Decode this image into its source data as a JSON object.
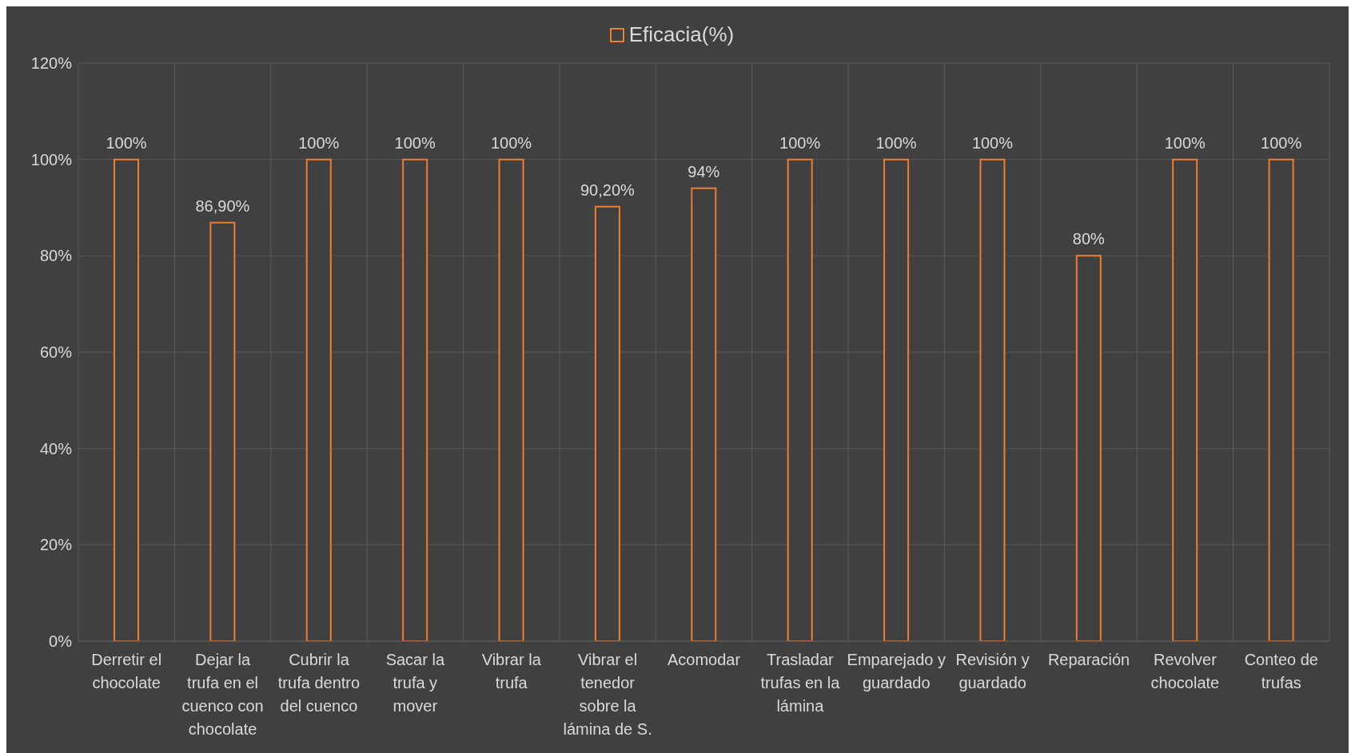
{
  "chart_data": {
    "type": "bar",
    "categories": [
      "Derretir el chocolate",
      "Dejar la trufa en el cuenco con chocolate",
      "Cubrir la trufa dentro del cuenco",
      "Sacar la trufa y mover",
      "Vibrar la trufa",
      "Vibrar el tenedor sobre la lámina de S.",
      "Acomodar",
      "Trasladar trufas en la lámina",
      "Emparejado y guardado",
      "Revisión y guardado",
      "Reparación",
      "Revolver chocolate",
      "Conteo de trufas"
    ],
    "series": [
      {
        "name": "Eficacia(%)",
        "color": "#ed7d31",
        "values": [
          100,
          86.9,
          100,
          100,
          100,
          90.2,
          94,
          100,
          100,
          100,
          80,
          100,
          100
        ],
        "value_labels": [
          "100%",
          "86,90%",
          "100%",
          "100%",
          "100%",
          "90,20%",
          "94%",
          "100%",
          "100%",
          "100%",
          "80%",
          "100%",
          "100%"
        ]
      }
    ],
    "ylim": [
      0,
      120
    ],
    "yticks": [
      {
        "value": 0,
        "label": "0%"
      },
      {
        "value": 20,
        "label": "20%"
      },
      {
        "value": 40,
        "label": "40%"
      },
      {
        "value": 60,
        "label": "60%"
      },
      {
        "value": 80,
        "label": "80%"
      },
      {
        "value": 100,
        "label": "100%"
      },
      {
        "value": 120,
        "label": "120%"
      }
    ],
    "grid": true,
    "legend": "top"
  }
}
